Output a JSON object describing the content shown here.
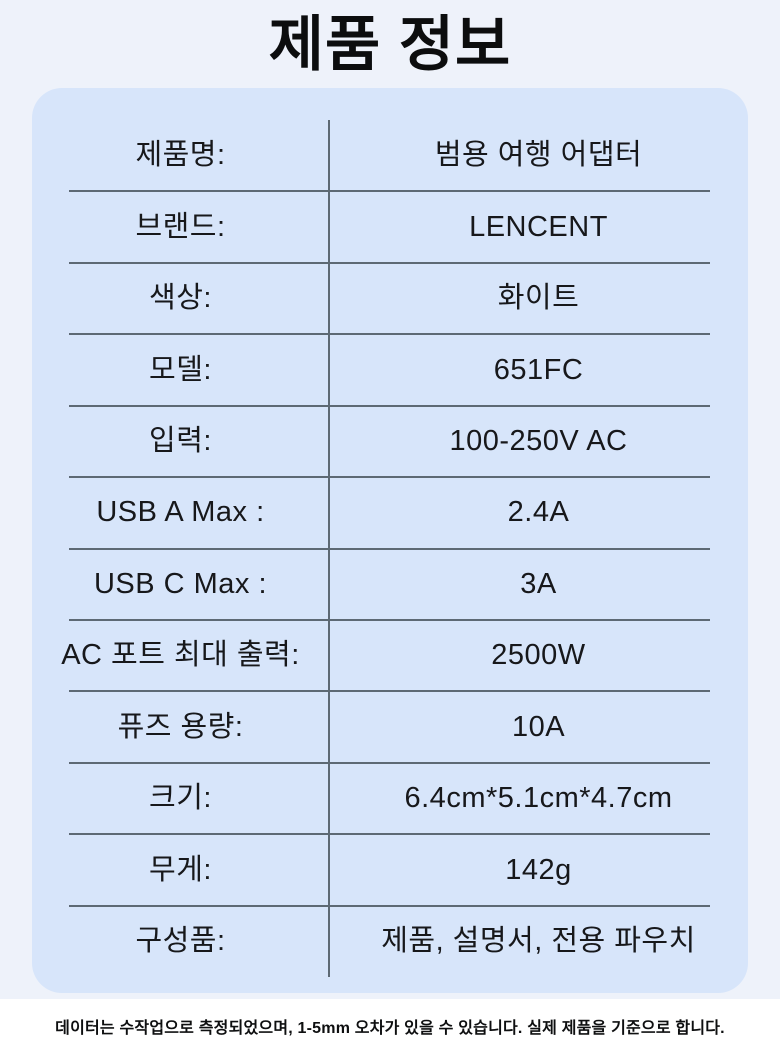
{
  "title": "제품 정보",
  "colors": {
    "page_background": "#eef2fa",
    "card_background": "#d7e5fa",
    "divider": "#5d6974",
    "text": "#17181b",
    "footer_background": "#ffffff"
  },
  "table": {
    "rows": [
      {
        "label": "제품명:",
        "value": "범용 여행 어댑터"
      },
      {
        "label": "브랜드:",
        "value": "LENCENT"
      },
      {
        "label": "색상:",
        "value": "화이트"
      },
      {
        "label": "모델:",
        "value": "651FC"
      },
      {
        "label": "입력:",
        "value": "100-250V AC"
      },
      {
        "label": "USB A Max :",
        "value": "2.4A"
      },
      {
        "label": "USB C Max :",
        "value": "3A"
      },
      {
        "label": "AC 포트 최대 출력:",
        "value": "2500W"
      },
      {
        "label": "퓨즈 용량:",
        "value": "10A"
      },
      {
        "label": "크기:",
        "value": "6.4cm*5.1cm*4.7cm"
      },
      {
        "label": "무게:",
        "value": "142g"
      },
      {
        "label": "구성품:",
        "value": "제품, 설명서, 전용 파우치"
      }
    ]
  },
  "footer": {
    "disclaimer": "데이터는 수작업으로 측정되었으며, 1-5mm 오차가 있을 수 있습니다. 실제 제품을 기준으로 합니다."
  }
}
